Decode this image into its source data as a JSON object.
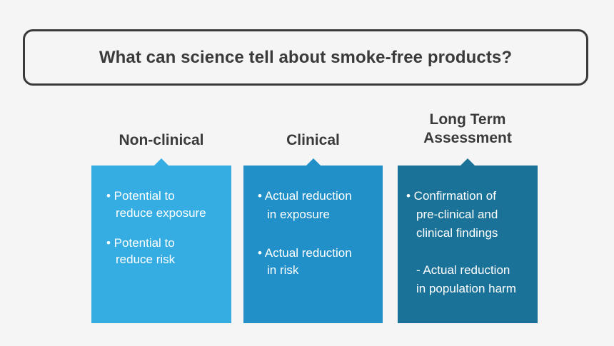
{
  "title": "What can science tell about smoke-free products?",
  "columns": [
    {
      "heading": [
        "Non-clinical"
      ],
      "lines": [
        "• Potential to",
        "reduce exposure",
        "• Potential to",
        "reduce risk"
      ]
    },
    {
      "heading": [
        "Clinical"
      ],
      "lines": [
        "• Actual reduction",
        "in exposure",
        "• Actual reduction",
        "in risk"
      ]
    },
    {
      "heading": [
        "Long Term",
        "Assessment"
      ],
      "lines": [
        "• Confirmation of",
        "pre-clinical and",
        "clinical findings",
        "- Actual reduction",
        "in population harm"
      ]
    }
  ],
  "colors": {
    "nonclinical": "#35ade3",
    "clinical": "#2190c8",
    "longterm": "#1b7298",
    "text_dark": "#3a3a3a"
  }
}
